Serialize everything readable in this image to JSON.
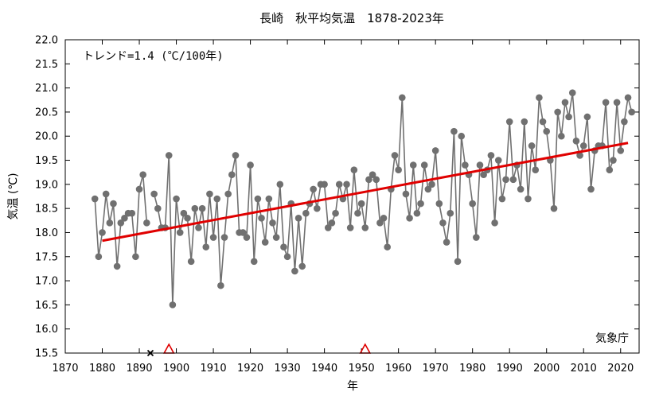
{
  "chart_data": {
    "type": "line",
    "title": "長崎　秋平均気温　1878-2023年",
    "xlabel": "年",
    "ylabel": "気温 (℃)",
    "xlim": [
      1870,
      2025
    ],
    "ylim": [
      15.5,
      22.0
    ],
    "xticks": [
      1870,
      1880,
      1890,
      1900,
      1910,
      1920,
      1930,
      1940,
      1950,
      1960,
      1970,
      1980,
      1990,
      2000,
      2010,
      2020
    ],
    "yticks": [
      "15.5",
      "16.0",
      "16.5",
      "17.0",
      "17.5",
      "18.0",
      "18.5",
      "19.0",
      "19.5",
      "20.0",
      "20.5",
      "21.0",
      "21.5",
      "22.0"
    ],
    "grid": false,
    "trend_annotation": "トレンド=1.4 (℃/100年)",
    "source": "気象庁",
    "series_color": "#707070",
    "trend_color": "#e00000",
    "x": [
      1878,
      1879,
      1880,
      1881,
      1882,
      1883,
      1884,
      1885,
      1886,
      1887,
      1888,
      1889,
      1890,
      1891,
      1892,
      1893,
      1894,
      1895,
      1896,
      1897,
      1898,
      1899,
      1900,
      1901,
      1902,
      1903,
      1904,
      1905,
      1906,
      1907,
      1908,
      1909,
      1910,
      1911,
      1912,
      1913,
      1914,
      1915,
      1916,
      1917,
      1918,
      1919,
      1920,
      1921,
      1922,
      1923,
      1924,
      1925,
      1926,
      1927,
      1928,
      1929,
      1930,
      1931,
      1932,
      1933,
      1934,
      1935,
      1936,
      1937,
      1938,
      1939,
      1940,
      1941,
      1942,
      1943,
      1944,
      1945,
      1946,
      1947,
      1948,
      1949,
      1950,
      1951,
      1952,
      1953,
      1954,
      1955,
      1956,
      1957,
      1958,
      1959,
      1960,
      1961,
      1962,
      1963,
      1964,
      1965,
      1966,
      1967,
      1968,
      1969,
      1970,
      1971,
      1972,
      1973,
      1974,
      1975,
      1976,
      1977,
      1978,
      1979,
      1980,
      1981,
      1982,
      1983,
      1984,
      1985,
      1986,
      1987,
      1988,
      1989,
      1990,
      1991,
      1992,
      1993,
      1994,
      1995,
      1996,
      1997,
      1998,
      1999,
      2000,
      2001,
      2002,
      2003,
      2004,
      2005,
      2006,
      2007,
      2008,
      2009,
      2010,
      2011,
      2012,
      2013,
      2014,
      2015,
      2016,
      2017,
      2018,
      2019,
      2020,
      2021,
      2022,
      2023
    ],
    "y": [
      18.7,
      17.5,
      18.0,
      18.8,
      18.2,
      18.6,
      17.3,
      18.2,
      18.3,
      18.4,
      18.4,
      17.5,
      18.9,
      19.2,
      18.2,
      null,
      18.8,
      18.5,
      18.1,
      18.1,
      19.6,
      16.5,
      18.7,
      18.0,
      18.4,
      18.3,
      17.4,
      18.5,
      18.1,
      18.5,
      17.7,
      18.8,
      17.9,
      18.7,
      16.9,
      17.9,
      18.8,
      19.2,
      19.6,
      18.0,
      18.0,
      17.9,
      19.4,
      17.4,
      18.7,
      18.3,
      17.8,
      18.7,
      18.2,
      17.9,
      19.0,
      17.7,
      17.5,
      18.6,
      17.2,
      18.3,
      17.3,
      18.4,
      18.6,
      18.9,
      18.5,
      19.0,
      19.0,
      18.1,
      18.2,
      18.4,
      19.0,
      18.7,
      19.0,
      18.1,
      19.3,
      18.4,
      18.6,
      18.1,
      19.1,
      19.2,
      19.1,
      18.2,
      18.3,
      17.7,
      18.9,
      19.6,
      19.3,
      20.8,
      18.8,
      18.3,
      19.4,
      18.4,
      18.6,
      19.4,
      18.9,
      19.0,
      19.7,
      18.6,
      18.2,
      17.8,
      18.4,
      20.1,
      17.4,
      20.0,
      19.4,
      19.2,
      18.6,
      17.9,
      19.4,
      19.2,
      19.3,
      19.6,
      18.2,
      19.5,
      18.7,
      19.1,
      20.3,
      19.1,
      19.4,
      18.9,
      20.3,
      18.7,
      19.8,
      19.3,
      20.8,
      20.3,
      20.1,
      19.5,
      18.5,
      20.5,
      20.0,
      20.7,
      20.4,
      20.9,
      19.9,
      19.6,
      19.8,
      20.4,
      18.9,
      19.7,
      19.8,
      19.8,
      20.7,
      19.3,
      19.5,
      20.7,
      19.7,
      20.3,
      20.8,
      20.5
    ],
    "trend": {
      "x": [
        1880,
        2022
      ],
      "y": [
        17.83,
        19.86
      ]
    },
    "missing_markers": {
      "cross_years": [
        1893
      ],
      "triangle_years": [
        1898,
        1951
      ]
    }
  }
}
